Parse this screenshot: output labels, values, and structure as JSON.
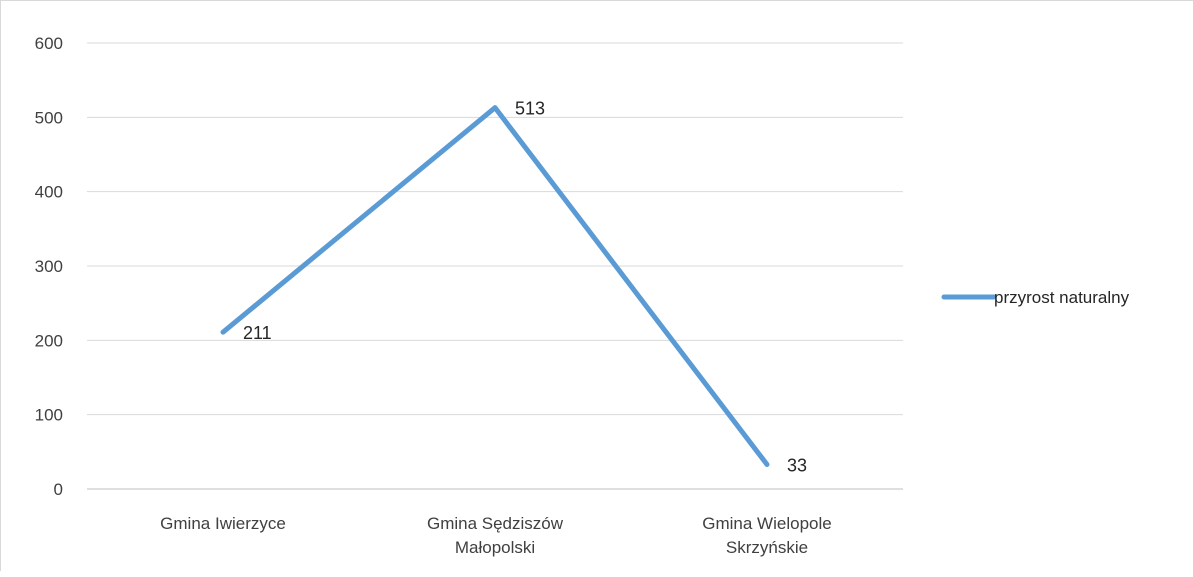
{
  "chart_data": {
    "type": "line",
    "title": "",
    "xlabel": "",
    "ylabel": "",
    "categories": [
      [
        "Gmina Iwierzyce"
      ],
      [
        "Gmina Sędziszów",
        "Małopolski"
      ],
      [
        "Gmina Wielopole",
        "Skrzyńskie"
      ]
    ],
    "series": [
      {
        "name": "przyrost naturalny",
        "values": [
          211,
          513,
          33
        ],
        "color": "#5b9bd5"
      }
    ],
    "data_labels": [
      "211",
      "513",
      "33"
    ],
    "ylim": [
      0,
      600
    ],
    "yticks": [
      0,
      100,
      200,
      300,
      400,
      500,
      600
    ],
    "ytick_labels": [
      "0",
      "100",
      "200",
      "300",
      "400",
      "500",
      "600"
    ],
    "grid": true,
    "legend_position": "right",
    "colors": {
      "gridline": "#d9d9d9",
      "axis": "#bfbfbf"
    }
  }
}
